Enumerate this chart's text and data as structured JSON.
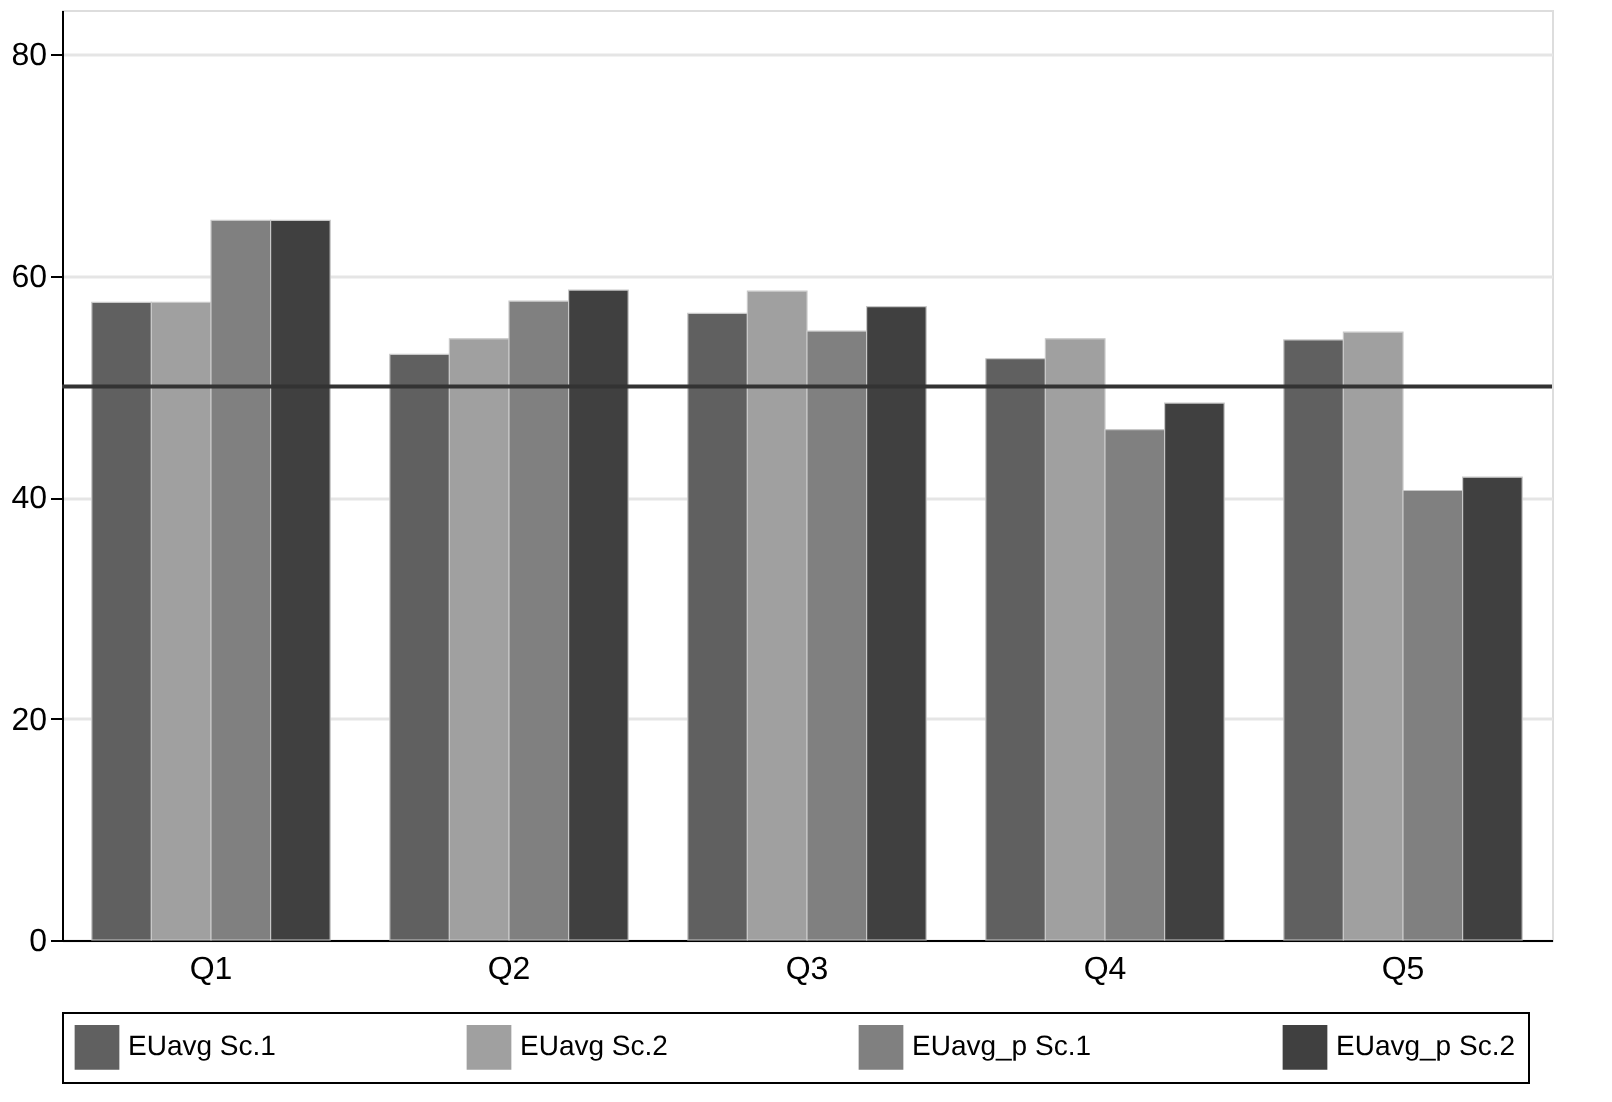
{
  "chart_data": {
    "type": "bar",
    "categories": [
      "Q1",
      "Q2",
      "Q3",
      "Q4",
      "Q5"
    ],
    "series": [
      {
        "name": "EUavg Sc.1",
        "color": "#606060",
        "values": [
          57.6,
          52.9,
          56.6,
          52.5,
          54.2
        ]
      },
      {
        "name": "EUavg Sc.2",
        "color": "#a0a0a0",
        "values": [
          57.6,
          54.3,
          58.6,
          54.3,
          54.9
        ]
      },
      {
        "name": "EUavg_p Sc.1",
        "color": "#808080",
        "values": [
          65.0,
          57.7,
          55.0,
          46.1,
          40.6
        ]
      },
      {
        "name": "EUavg_p Sc.2",
        "color": "#404040",
        "values": [
          65.0,
          58.7,
          57.2,
          48.5,
          41.8
        ]
      }
    ],
    "ylim": [
      0,
      84
    ],
    "yticks": [
      0,
      20,
      40,
      60,
      80
    ],
    "grid": "y",
    "legend": "bottom",
    "ref_lines": [
      {
        "axis": "y",
        "value": 50,
        "color": "#333333"
      }
    ]
  }
}
